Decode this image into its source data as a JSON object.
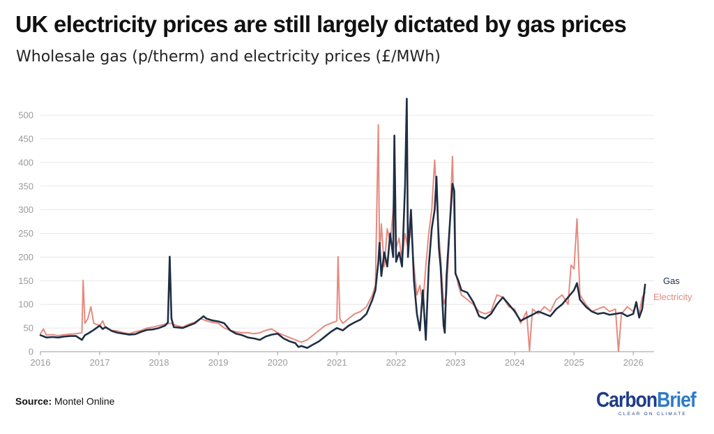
{
  "title": "UK electricity prices are still largely dictated by gas prices",
  "subtitle": "Wholesale gas (p/therm) and electricity prices (£/MWh)",
  "source": {
    "label": "Source:",
    "text": "Montel Online"
  },
  "logo": {
    "part1": "Carbon",
    "part2": "Brief",
    "tagline": "CLEAR ON CLIMATE"
  },
  "colors": {
    "gas": "#1f2e44",
    "electricity": "#e58a7e",
    "grid": "#e6e6e6",
    "axis": "#999999",
    "tick": "#9a9a9a"
  },
  "chart_data": {
    "type": "line",
    "title": "UK electricity prices are still largely dictated by gas prices",
    "subtitle": "Wholesale gas (p/therm) and electricity prices (£/MWh)",
    "ylim": [
      0,
      540
    ],
    "xlim": [
      2016.0,
      2026.35
    ],
    "yticks": [
      0,
      50,
      100,
      150,
      200,
      250,
      300,
      350,
      400,
      450,
      500
    ],
    "xticks": [
      "2016",
      "2017",
      "2018",
      "2019",
      "2020",
      "2021",
      "2022",
      "2023",
      "2024",
      "2025",
      "2026"
    ],
    "grid": true,
    "legend": "direct labels at right end of lines",
    "series": [
      {
        "name": "Gas",
        "points": [
          [
            2016.0,
            35
          ],
          [
            2016.1,
            30
          ],
          [
            2016.2,
            31
          ],
          [
            2016.3,
            30
          ],
          [
            2016.4,
            32
          ],
          [
            2016.5,
            33
          ],
          [
            2016.6,
            33
          ],
          [
            2016.7,
            25
          ],
          [
            2016.75,
            35
          ],
          [
            2016.8,
            38
          ],
          [
            2016.9,
            46
          ],
          [
            2017.0,
            55
          ],
          [
            2017.05,
            48
          ],
          [
            2017.1,
            52
          ],
          [
            2017.2,
            44
          ],
          [
            2017.3,
            40
          ],
          [
            2017.4,
            38
          ],
          [
            2017.5,
            36
          ],
          [
            2017.6,
            37
          ],
          [
            2017.7,
            42
          ],
          [
            2017.8,
            46
          ],
          [
            2017.9,
            47
          ],
          [
            2018.0,
            50
          ],
          [
            2018.1,
            55
          ],
          [
            2018.15,
            62
          ],
          [
            2018.18,
            201
          ],
          [
            2018.21,
            70
          ],
          [
            2018.25,
            52
          ],
          [
            2018.4,
            50
          ],
          [
            2018.5,
            55
          ],
          [
            2018.6,
            60
          ],
          [
            2018.7,
            70
          ],
          [
            2018.75,
            75
          ],
          [
            2018.8,
            70
          ],
          [
            2018.9,
            66
          ],
          [
            2019.0,
            64
          ],
          [
            2019.1,
            60
          ],
          [
            2019.2,
            45
          ],
          [
            2019.3,
            38
          ],
          [
            2019.4,
            35
          ],
          [
            2019.5,
            30
          ],
          [
            2019.6,
            28
          ],
          [
            2019.7,
            25
          ],
          [
            2019.8,
            32
          ],
          [
            2019.9,
            36
          ],
          [
            2020.0,
            38
          ],
          [
            2020.1,
            28
          ],
          [
            2020.2,
            22
          ],
          [
            2020.3,
            18
          ],
          [
            2020.35,
            10
          ],
          [
            2020.4,
            12
          ],
          [
            2020.5,
            8
          ],
          [
            2020.6,
            15
          ],
          [
            2020.7,
            22
          ],
          [
            2020.8,
            32
          ],
          [
            2020.9,
            42
          ],
          [
            2021.0,
            50
          ],
          [
            2021.1,
            45
          ],
          [
            2021.2,
            55
          ],
          [
            2021.3,
            62
          ],
          [
            2021.4,
            68
          ],
          [
            2021.5,
            80
          ],
          [
            2021.6,
            110
          ],
          [
            2021.65,
            130
          ],
          [
            2021.7,
            190
          ],
          [
            2021.72,
            230
          ],
          [
            2021.75,
            160
          ],
          [
            2021.8,
            210
          ],
          [
            2021.85,
            180
          ],
          [
            2021.9,
            250
          ],
          [
            2021.95,
            200
          ],
          [
            2021.97,
            457
          ],
          [
            2022.0,
            190
          ],
          [
            2022.05,
            210
          ],
          [
            2022.1,
            180
          ],
          [
            2022.15,
            350
          ],
          [
            2022.18,
            535
          ],
          [
            2022.2,
            200
          ],
          [
            2022.25,
            300
          ],
          [
            2022.3,
            150
          ],
          [
            2022.35,
            80
          ],
          [
            2022.4,
            45
          ],
          [
            2022.45,
            130
          ],
          [
            2022.5,
            25
          ],
          [
            2022.55,
            180
          ],
          [
            2022.6,
            260
          ],
          [
            2022.65,
            300
          ],
          [
            2022.68,
            370
          ],
          [
            2022.72,
            220
          ],
          [
            2022.75,
            180
          ],
          [
            2022.8,
            55
          ],
          [
            2022.82,
            40
          ],
          [
            2022.85,
            160
          ],
          [
            2022.9,
            260
          ],
          [
            2022.95,
            355
          ],
          [
            2022.98,
            340
          ],
          [
            2023.0,
            165
          ],
          [
            2023.05,
            150
          ],
          [
            2023.1,
            130
          ],
          [
            2023.2,
            125
          ],
          [
            2023.3,
            105
          ],
          [
            2023.4,
            75
          ],
          [
            2023.5,
            70
          ],
          [
            2023.6,
            80
          ],
          [
            2023.7,
            100
          ],
          [
            2023.8,
            115
          ],
          [
            2023.9,
            100
          ],
          [
            2024.0,
            85
          ],
          [
            2024.1,
            65
          ],
          [
            2024.2,
            72
          ],
          [
            2024.3,
            78
          ],
          [
            2024.4,
            85
          ],
          [
            2024.5,
            80
          ],
          [
            2024.6,
            75
          ],
          [
            2024.7,
            90
          ],
          [
            2024.8,
            100
          ],
          [
            2024.9,
            115
          ],
          [
            2025.0,
            130
          ],
          [
            2025.05,
            145
          ],
          [
            2025.1,
            110
          ],
          [
            2025.2,
            95
          ],
          [
            2025.3,
            85
          ],
          [
            2025.4,
            80
          ],
          [
            2025.5,
            82
          ],
          [
            2025.6,
            78
          ],
          [
            2025.7,
            80
          ],
          [
            2025.8,
            82
          ],
          [
            2025.9,
            75
          ],
          [
            2026.0,
            80
          ],
          [
            2026.05,
            105
          ],
          [
            2026.1,
            72
          ],
          [
            2026.15,
            90
          ],
          [
            2026.2,
            142
          ]
        ]
      },
      {
        "name": "Electricity",
        "points": [
          [
            2016.0,
            38
          ],
          [
            2016.05,
            48
          ],
          [
            2016.1,
            35
          ],
          [
            2016.2,
            36
          ],
          [
            2016.3,
            34
          ],
          [
            2016.4,
            36
          ],
          [
            2016.5,
            37
          ],
          [
            2016.6,
            38
          ],
          [
            2016.7,
            40
          ],
          [
            2016.72,
            151
          ],
          [
            2016.75,
            60
          ],
          [
            2016.8,
            70
          ],
          [
            2016.85,
            95
          ],
          [
            2016.9,
            60
          ],
          [
            2017.0,
            55
          ],
          [
            2017.05,
            65
          ],
          [
            2017.1,
            50
          ],
          [
            2017.2,
            45
          ],
          [
            2017.3,
            44
          ],
          [
            2017.4,
            40
          ],
          [
            2017.5,
            38
          ],
          [
            2017.6,
            42
          ],
          [
            2017.7,
            45
          ],
          [
            2017.8,
            50
          ],
          [
            2017.9,
            52
          ],
          [
            2018.0,
            55
          ],
          [
            2018.1,
            58
          ],
          [
            2018.2,
            60
          ],
          [
            2018.3,
            55
          ],
          [
            2018.4,
            52
          ],
          [
            2018.5,
            58
          ],
          [
            2018.6,
            62
          ],
          [
            2018.7,
            70
          ],
          [
            2018.8,
            65
          ],
          [
            2018.9,
            62
          ],
          [
            2019.0,
            60
          ],
          [
            2019.1,
            50
          ],
          [
            2019.2,
            45
          ],
          [
            2019.3,
            42
          ],
          [
            2019.4,
            40
          ],
          [
            2019.5,
            40
          ],
          [
            2019.6,
            38
          ],
          [
            2019.7,
            40
          ],
          [
            2019.8,
            45
          ],
          [
            2019.9,
            48
          ],
          [
            2020.0,
            40
          ],
          [
            2020.1,
            35
          ],
          [
            2020.2,
            30
          ],
          [
            2020.3,
            25
          ],
          [
            2020.4,
            20
          ],
          [
            2020.5,
            25
          ],
          [
            2020.6,
            35
          ],
          [
            2020.7,
            45
          ],
          [
            2020.8,
            55
          ],
          [
            2020.9,
            60
          ],
          [
            2021.0,
            65
          ],
          [
            2021.02,
            201
          ],
          [
            2021.05,
            70
          ],
          [
            2021.1,
            60
          ],
          [
            2021.2,
            70
          ],
          [
            2021.3,
            80
          ],
          [
            2021.4,
            85
          ],
          [
            2021.5,
            95
          ],
          [
            2021.6,
            120
          ],
          [
            2021.65,
            140
          ],
          [
            2021.7,
            480
          ],
          [
            2021.72,
            200
          ],
          [
            2021.75,
            270
          ],
          [
            2021.8,
            180
          ],
          [
            2021.85,
            260
          ],
          [
            2021.9,
            230
          ],
          [
            2021.95,
            300
          ],
          [
            2021.98,
            400
          ],
          [
            2022.0,
            220
          ],
          [
            2022.05,
            240
          ],
          [
            2022.1,
            190
          ],
          [
            2022.15,
            250
          ],
          [
            2022.2,
            220
          ],
          [
            2022.25,
            260
          ],
          [
            2022.3,
            180
          ],
          [
            2022.35,
            120
          ],
          [
            2022.4,
            140
          ],
          [
            2022.45,
            100
          ],
          [
            2022.5,
            180
          ],
          [
            2022.55,
            250
          ],
          [
            2022.6,
            300
          ],
          [
            2022.65,
            405
          ],
          [
            2022.7,
            280
          ],
          [
            2022.75,
            200
          ],
          [
            2022.8,
            100
          ],
          [
            2022.85,
            120
          ],
          [
            2022.9,
            250
          ],
          [
            2022.95,
            413
          ],
          [
            2023.0,
            170
          ],
          [
            2023.05,
            140
          ],
          [
            2023.1,
            120
          ],
          [
            2023.2,
            110
          ],
          [
            2023.3,
            100
          ],
          [
            2023.4,
            85
          ],
          [
            2023.5,
            80
          ],
          [
            2023.6,
            85
          ],
          [
            2023.7,
            120
          ],
          [
            2023.8,
            115
          ],
          [
            2023.9,
            95
          ],
          [
            2024.0,
            90
          ],
          [
            2024.1,
            60
          ],
          [
            2024.2,
            85
          ],
          [
            2024.25,
            2
          ],
          [
            2024.3,
            90
          ],
          [
            2024.4,
            80
          ],
          [
            2024.5,
            95
          ],
          [
            2024.6,
            85
          ],
          [
            2024.7,
            110
          ],
          [
            2024.8,
            120
          ],
          [
            2024.9,
            100
          ],
          [
            2024.95,
            183
          ],
          [
            2025.0,
            175
          ],
          [
            2025.05,
            281
          ],
          [
            2025.1,
            120
          ],
          [
            2025.2,
            100
          ],
          [
            2025.3,
            85
          ],
          [
            2025.4,
            90
          ],
          [
            2025.5,
            95
          ],
          [
            2025.6,
            85
          ],
          [
            2025.7,
            90
          ],
          [
            2025.75,
            0
          ],
          [
            2025.8,
            80
          ],
          [
            2025.9,
            95
          ],
          [
            2026.0,
            85
          ],
          [
            2026.05,
            100
          ],
          [
            2026.1,
            80
          ],
          [
            2026.15,
            115
          ],
          [
            2026.2,
            125
          ]
        ]
      }
    ]
  }
}
